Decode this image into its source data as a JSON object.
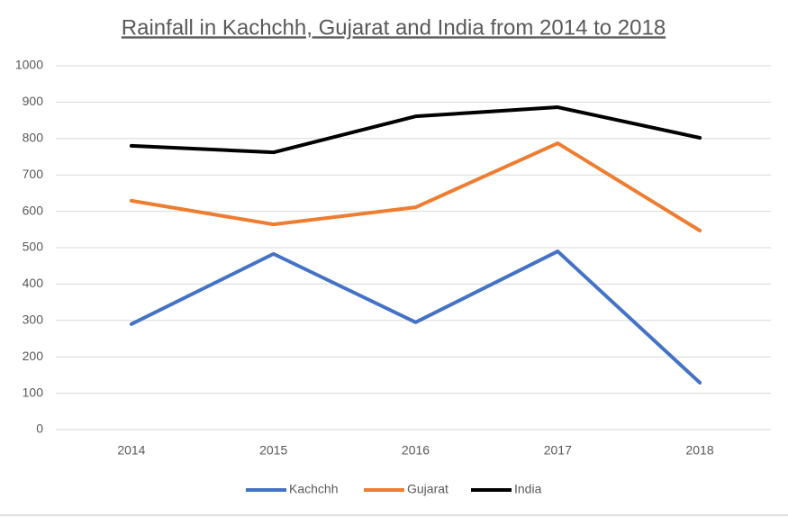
{
  "chart_data": {
    "type": "line",
    "title": "Rainfall in Kachchh, Gujarat and India from 2014 to 2018",
    "categories": [
      "2014",
      "2015",
      "2016",
      "2017",
      "2018"
    ],
    "series": [
      {
        "name": "Kachchh",
        "color": "#4472c4",
        "values": [
          290,
          483,
          295,
          490,
          129
        ]
      },
      {
        "name": "Gujarat",
        "color": "#ed7d31",
        "values": [
          629,
          564,
          611,
          787,
          547
        ]
      },
      {
        "name": "India",
        "color": "#000000",
        "values": [
          780,
          762,
          861,
          886,
          802
        ]
      }
    ],
    "ylim": [
      0,
      1000
    ],
    "yticks": [
      0,
      100,
      200,
      300,
      400,
      500,
      600,
      700,
      800,
      900,
      1000
    ],
    "grid": true,
    "legend": "bottom"
  }
}
